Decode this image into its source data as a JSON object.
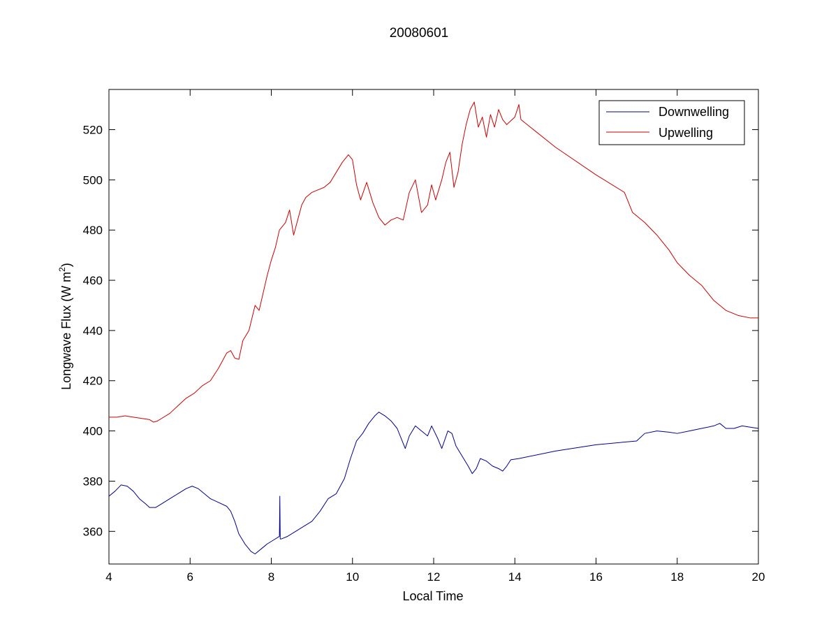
{
  "chart_data": {
    "type": "line",
    "title": "20080601",
    "xlabel": "Local Time",
    "ylabel_main": "Longwave Flux (W m",
    "ylabel_sup": "2",
    "ylabel_close": ")",
    "xlim": [
      4,
      20
    ],
    "ylim": [
      347,
      536
    ],
    "xticks": [
      4,
      6,
      8,
      10,
      12,
      14,
      16,
      18,
      20
    ],
    "yticks": [
      360,
      380,
      400,
      420,
      440,
      460,
      480,
      500,
      520
    ],
    "grid": false,
    "legend_position": "top-right",
    "series": [
      {
        "name": "Downwelling",
        "color": "#00008b",
        "x": [
          4.0,
          4.15,
          4.3,
          4.45,
          4.6,
          4.75,
          4.9,
          5.0,
          5.15,
          5.3,
          5.5,
          5.7,
          5.9,
          6.05,
          6.2,
          6.35,
          6.5,
          6.7,
          6.9,
          7.0,
          7.1,
          7.2,
          7.35,
          7.5,
          7.6,
          7.75,
          7.9,
          8.05,
          8.2,
          8.21,
          8.22,
          8.25,
          8.4,
          8.6,
          8.8,
          9.0,
          9.2,
          9.4,
          9.6,
          9.8,
          9.95,
          10.1,
          10.25,
          10.4,
          10.55,
          10.65,
          10.8,
          10.95,
          11.1,
          11.2,
          11.3,
          11.4,
          11.55,
          11.7,
          11.85,
          11.95,
          12.1,
          12.2,
          12.35,
          12.45,
          12.55,
          12.7,
          12.85,
          12.95,
          13.05,
          13.15,
          13.3,
          13.45,
          13.6,
          13.7,
          13.8,
          13.9,
          14.1,
          15.0,
          16.0,
          17.0,
          17.2,
          17.5,
          17.8,
          18.0,
          18.3,
          18.6,
          18.9,
          19.05,
          19.2,
          19.4,
          19.6,
          19.8,
          20.0
        ],
        "values": [
          374,
          376,
          378.5,
          378,
          376,
          373,
          371,
          369.5,
          369.5,
          371,
          373,
          375,
          377,
          378,
          377,
          375,
          373,
          371.5,
          370,
          368,
          364,
          359,
          355,
          352,
          351,
          353,
          355,
          356.5,
          358,
          374,
          357,
          357,
          358,
          360,
          362,
          364,
          368,
          373,
          375,
          381,
          389,
          396,
          399,
          403,
          406,
          407.5,
          406,
          404,
          401,
          397,
          393,
          398,
          402,
          400,
          398,
          402,
          397,
          393,
          400,
          399,
          394,
          390,
          386,
          383,
          385,
          389,
          388,
          386,
          385,
          384,
          386,
          388.5,
          389,
          392,
          394.5,
          396,
          399,
          400,
          399.5,
          399,
          400,
          401,
          402,
          403,
          401,
          401,
          402,
          401.5,
          401
        ]
      },
      {
        "name": "Upwelling",
        "color": "#cc0000",
        "x": [
          4.0,
          4.2,
          4.4,
          4.6,
          4.8,
          5.0,
          5.1,
          5.2,
          5.3,
          5.5,
          5.7,
          5.9,
          6.1,
          6.3,
          6.5,
          6.7,
          6.9,
          7.0,
          7.1,
          7.2,
          7.3,
          7.45,
          7.6,
          7.7,
          7.8,
          7.9,
          8.0,
          8.1,
          8.2,
          8.35,
          8.45,
          8.55,
          8.65,
          8.75,
          8.85,
          9.0,
          9.15,
          9.3,
          9.45,
          9.6,
          9.75,
          9.9,
          10.0,
          10.1,
          10.2,
          10.35,
          10.5,
          10.65,
          10.8,
          10.95,
          11.1,
          11.25,
          11.4,
          11.55,
          11.7,
          11.85,
          11.95,
          12.05,
          12.2,
          12.3,
          12.4,
          12.5,
          12.6,
          12.7,
          12.8,
          12.9,
          13.0,
          13.1,
          13.2,
          13.3,
          13.4,
          13.5,
          13.6,
          13.7,
          13.8,
          14.0,
          14.1,
          14.15,
          15.0,
          16.0,
          16.7,
          16.9,
          17.2,
          17.5,
          17.8,
          18.0,
          18.3,
          18.6,
          18.9,
          19.2,
          19.5,
          19.8,
          20.0
        ],
        "values": [
          405.5,
          405.5,
          406,
          405.5,
          405,
          404.5,
          403.5,
          404,
          405,
          407,
          410,
          413,
          415,
          418,
          420,
          425,
          431,
          432,
          429,
          428.5,
          436,
          440,
          450,
          448,
          455,
          462,
          468,
          473,
          480,
          483,
          488,
          478,
          484,
          490,
          493,
          495,
          496,
          497,
          499,
          503,
          507,
          510,
          508,
          498,
          492,
          499,
          491,
          485,
          482,
          484,
          485,
          484,
          495,
          500,
          487,
          490,
          498,
          492,
          500,
          507,
          511,
          497,
          503,
          514,
          522,
          528,
          531,
          521,
          525,
          517,
          526,
          521,
          528,
          524,
          522,
          525,
          530,
          524,
          513,
          502,
          495,
          487,
          483,
          478,
          472,
          467,
          462,
          458,
          452,
          448,
          446,
          445,
          445
        ]
      }
    ]
  }
}
